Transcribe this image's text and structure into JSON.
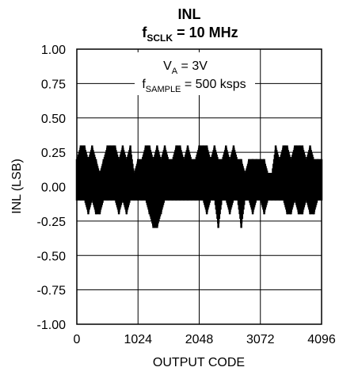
{
  "chart_data": {
    "type": "line",
    "title": "INL",
    "subtitle": {
      "prefix": "f",
      "sub": "SCLK",
      "suffix": " = 10 MHz"
    },
    "xlabel": "OUTPUT CODE",
    "ylabel": "INL (LSB)",
    "xlim": [
      0,
      4096
    ],
    "ylim": [
      -1.0,
      1.0
    ],
    "x_ticks": [
      0,
      1024,
      2048,
      3072,
      4096
    ],
    "x_tick_labels": [
      "0",
      "1024",
      "2048",
      "3072",
      "4096"
    ],
    "y_ticks": [
      1.0,
      0.75,
      0.5,
      0.25,
      0.0,
      -0.25,
      -0.5,
      -0.75,
      -1.0
    ],
    "y_tick_labels": [
      "1.00",
      "0.75",
      "0.50",
      "0.25",
      "0.00",
      "-0.25",
      "-0.50",
      "-0.75",
      "-1.00"
    ],
    "grid": true,
    "annotations": [
      {
        "prefix": "V",
        "sub": "A",
        "suffix": " = 3V"
      },
      {
        "prefix": "f",
        "sub": "SAMPLE",
        "suffix": " = 500 ksps"
      }
    ],
    "series": [
      {
        "color": "#000000",
        "x": [
          0,
          64,
          128,
          192,
          256,
          320,
          384,
          448,
          512,
          576,
          640,
          704,
          768,
          832,
          896,
          960,
          1024,
          1088,
          1152,
          1216,
          1280,
          1344,
          1408,
          1472,
          1536,
          1600,
          1664,
          1728,
          1792,
          1856,
          1920,
          1984,
          2048,
          2112,
          2176,
          2240,
          2304,
          2368,
          2432,
          2496,
          2560,
          2624,
          2688,
          2752,
          2816,
          2880,
          2944,
          3008,
          3072,
          3136,
          3200,
          3264,
          3328,
          3392,
          3456,
          3520,
          3584,
          3648,
          3712,
          3776,
          3840,
          3904,
          3968,
          4032,
          4096
        ],
        "upper": [
          0.2,
          0.3,
          0.3,
          0.2,
          0.3,
          0.2,
          0.1,
          0.2,
          0.3,
          0.3,
          0.3,
          0.2,
          0.3,
          0.2,
          0.3,
          0.1,
          0.2,
          0.2,
          0.3,
          0.3,
          0.2,
          0.3,
          0.2,
          0.3,
          0.2,
          0.2,
          0.3,
          0.3,
          0.2,
          0.3,
          0.2,
          0.2,
          0.3,
          0.3,
          0.3,
          0.2,
          0.3,
          0.2,
          0.2,
          0.3,
          0.2,
          0.3,
          0.2,
          0.2,
          0.1,
          0.2,
          0.2,
          0.2,
          0.2,
          0.2,
          0.1,
          0.1,
          0.3,
          0.2,
          0.3,
          0.3,
          0.2,
          0.3,
          0.3,
          0.3,
          0.2,
          0.3,
          0.2,
          0.2,
          0.2
        ],
        "lower": [
          -0.1,
          -0.1,
          -0.1,
          -0.2,
          -0.1,
          -0.2,
          -0.2,
          -0.1,
          -0.1,
          -0.1,
          -0.1,
          -0.2,
          -0.1,
          -0.2,
          -0.1,
          -0.1,
          -0.1,
          -0.1,
          -0.1,
          -0.2,
          -0.3,
          -0.3,
          -0.2,
          -0.1,
          -0.1,
          -0.1,
          -0.1,
          -0.1,
          -0.1,
          -0.1,
          -0.1,
          -0.1,
          -0.1,
          -0.1,
          -0.2,
          -0.1,
          -0.1,
          -0.3,
          -0.1,
          -0.1,
          -0.2,
          -0.1,
          -0.1,
          -0.3,
          -0.1,
          -0.1,
          -0.2,
          -0.1,
          -0.1,
          -0.2,
          -0.1,
          -0.1,
          -0.1,
          -0.1,
          -0.1,
          -0.2,
          -0.2,
          -0.1,
          -0.2,
          -0.2,
          -0.1,
          -0.2,
          -0.2,
          -0.1,
          -0.1
        ]
      }
    ]
  }
}
